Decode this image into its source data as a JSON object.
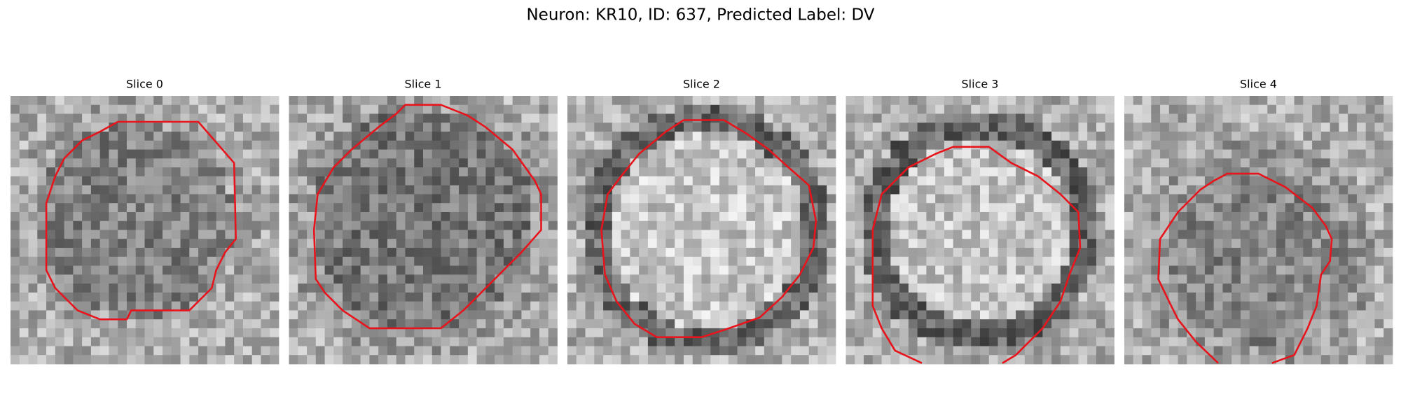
{
  "title": "Neuron: KR10, ID: 637, Predicted Label: DV",
  "panels": [
    {
      "title": "Slice 0"
    },
    {
      "title": "Slice 1"
    },
    {
      "title": "Slice 2"
    },
    {
      "title": "Slice 3"
    },
    {
      "title": "Slice 4"
    }
  ]
}
